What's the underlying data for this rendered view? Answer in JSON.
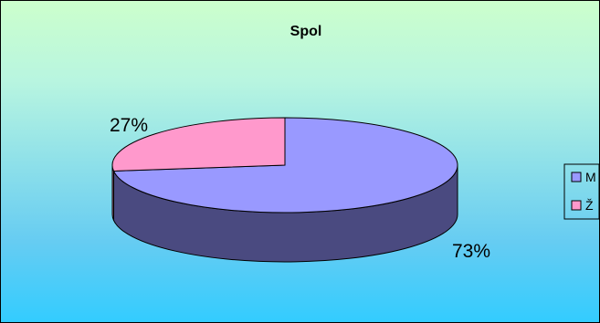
{
  "chart_data": {
    "type": "pie",
    "title": "Spol",
    "labels": [
      "M",
      "Ž"
    ],
    "values": [
      73,
      27
    ],
    "data_labels": [
      "73%",
      "27%"
    ],
    "legend_position": "right",
    "colors": {
      "M": "#9999ff",
      "M_side": "#4a4a80",
      "Ž": "#ff99cc",
      "Ž_side": "#b07090"
    },
    "background": {
      "top": "#ccffcc",
      "bottom": "#33ccff"
    }
  }
}
